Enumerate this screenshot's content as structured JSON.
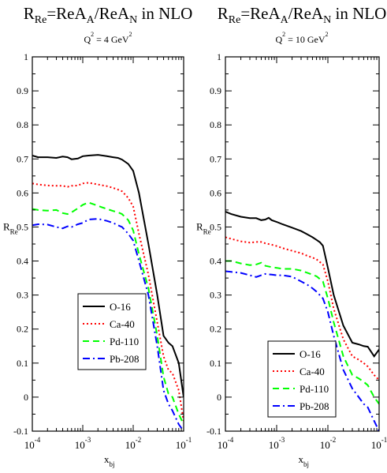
{
  "chart_data": [
    {
      "type": "line",
      "title_parts": {
        "r": "R",
        "rsub": "Re",
        "eq": "=ReA",
        "asub": "A",
        "slash": "/ReA",
        "nsub": "N",
        "tail": " in NLO"
      },
      "subtitle_parts": {
        "q": "Q",
        "qsup": "2",
        "eq": " = 4 GeV",
        "gsup": "2"
      },
      "ylabel_parts": {
        "main": "R",
        "sub": "Re"
      },
      "xlabel_parts": {
        "main": "x",
        "sub": "bj"
      },
      "xscale": "log",
      "xlim": [
        0.0001,
        0.1
      ],
      "ylim": [
        -0.1,
        1.0
      ],
      "yticks": [
        -0.1,
        0,
        0.1,
        0.2,
        0.3,
        0.4,
        0.5,
        0.6,
        0.7,
        0.8,
        0.9,
        1.0
      ],
      "ytick_labels": [
        "-0.1",
        "0",
        "0.1",
        "0.2",
        "0.3",
        "0.4",
        "0.5",
        "0.6",
        "0.7",
        "0.8",
        "0.9",
        "1"
      ],
      "xticks": [
        0.0001,
        0.001,
        0.01,
        0.1
      ],
      "xtick_labels": [
        [
          "10",
          "-4"
        ],
        [
          "10",
          "-3"
        ],
        [
          "10",
          "-2"
        ],
        [
          "10",
          "-1"
        ]
      ],
      "legend_position": "lower-left",
      "series": [
        {
          "name": "O-16",
          "color": "#000000",
          "dash": "solid",
          "points": [
            [
              0.0001,
              0.71
            ],
            [
              0.00013,
              0.705
            ],
            [
              0.0002,
              0.705
            ],
            [
              0.0003,
              0.703
            ],
            [
              0.0004,
              0.707
            ],
            [
              0.0005,
              0.705
            ],
            [
              0.0006,
              0.699
            ],
            [
              0.0008,
              0.701
            ],
            [
              0.001,
              0.708
            ],
            [
              0.0013,
              0.71
            ],
            [
              0.002,
              0.712
            ],
            [
              0.003,
              0.708
            ],
            [
              0.004,
              0.705
            ],
            [
              0.005,
              0.703
            ],
            [
              0.006,
              0.698
            ],
            [
              0.008,
              0.685
            ],
            [
              0.01,
              0.665
            ],
            [
              0.013,
              0.6
            ],
            [
              0.02,
              0.45
            ],
            [
              0.03,
              0.3
            ],
            [
              0.04,
              0.18
            ],
            [
              0.05,
              0.16
            ],
            [
              0.06,
              0.15
            ],
            [
              0.08,
              0.1
            ],
            [
              0.1,
              0.0
            ]
          ]
        },
        {
          "name": "Ca-40",
          "color": "#ff0000",
          "dash": "dot",
          "points": [
            [
              0.0001,
              0.628
            ],
            [
              0.00013,
              0.625
            ],
            [
              0.0002,
              0.622
            ],
            [
              0.0003,
              0.621
            ],
            [
              0.0004,
              0.621
            ],
            [
              0.0005,
              0.618
            ],
            [
              0.0006,
              0.621
            ],
            [
              0.0008,
              0.622
            ],
            [
              0.001,
              0.628
            ],
            [
              0.0013,
              0.63
            ],
            [
              0.002,
              0.625
            ],
            [
              0.003,
              0.62
            ],
            [
              0.004,
              0.615
            ],
            [
              0.005,
              0.61
            ],
            [
              0.006,
              0.605
            ],
            [
              0.008,
              0.585
            ],
            [
              0.01,
              0.56
            ],
            [
              0.013,
              0.48
            ],
            [
              0.02,
              0.36
            ],
            [
              0.03,
              0.22
            ],
            [
              0.04,
              0.12
            ],
            [
              0.05,
              0.08
            ],
            [
              0.06,
              0.07
            ],
            [
              0.08,
              0.02
            ],
            [
              0.1,
              -0.07
            ]
          ]
        },
        {
          "name": "Pd-110",
          "color": "#00ff00",
          "dash": "dash",
          "points": [
            [
              0.0001,
              0.553
            ],
            [
              0.00013,
              0.55
            ],
            [
              0.0002,
              0.548
            ],
            [
              0.0003,
              0.55
            ],
            [
              0.0004,
              0.541
            ],
            [
              0.0005,
              0.538
            ],
            [
              0.0006,
              0.543
            ],
            [
              0.0008,
              0.555
            ],
            [
              0.001,
              0.565
            ],
            [
              0.0013,
              0.572
            ],
            [
              0.002,
              0.562
            ],
            [
              0.003,
              0.553
            ],
            [
              0.004,
              0.547
            ],
            [
              0.005,
              0.543
            ],
            [
              0.006,
              0.538
            ],
            [
              0.008,
              0.52
            ],
            [
              0.01,
              0.49
            ],
            [
              0.013,
              0.42
            ],
            [
              0.02,
              0.32
            ],
            [
              0.03,
              0.18
            ],
            [
              0.04,
              0.06
            ],
            [
              0.05,
              0.01
            ],
            [
              0.06,
              0.0
            ],
            [
              0.08,
              -0.05
            ],
            [
              0.1,
              -0.08
            ]
          ]
        },
        {
          "name": "Pb-208",
          "color": "#0000ff",
          "dash": "dashdot",
          "points": [
            [
              0.0001,
              0.505
            ],
            [
              0.00013,
              0.508
            ],
            [
              0.0002,
              0.507
            ],
            [
              0.0003,
              0.5
            ],
            [
              0.0004,
              0.496
            ],
            [
              0.0005,
              0.502
            ],
            [
              0.0006,
              0.5
            ],
            [
              0.0008,
              0.508
            ],
            [
              0.001,
              0.512
            ],
            [
              0.0013,
              0.522
            ],
            [
              0.002,
              0.524
            ],
            [
              0.003,
              0.518
            ],
            [
              0.004,
              0.512
            ],
            [
              0.005,
              0.505
            ],
            [
              0.006,
              0.5
            ],
            [
              0.008,
              0.48
            ],
            [
              0.01,
              0.46
            ],
            [
              0.013,
              0.4
            ],
            [
              0.02,
              0.3
            ],
            [
              0.03,
              0.15
            ],
            [
              0.04,
              0.02
            ],
            [
              0.05,
              -0.02
            ],
            [
              0.06,
              -0.04
            ],
            [
              0.08,
              -0.08
            ],
            [
              0.1,
              -0.1
            ]
          ]
        }
      ]
    },
    {
      "type": "line",
      "title_parts": {
        "r": "R",
        "rsub": "Re",
        "eq": "=ReA",
        "asub": "A",
        "slash": "/ReA",
        "nsub": "N",
        "tail": " in NLO"
      },
      "subtitle_parts": {
        "q": "Q",
        "qsup": "2",
        "eq": " = 10 GeV",
        "gsup": "2"
      },
      "ylabel_parts": {
        "main": "R",
        "sub": "Re"
      },
      "xlabel_parts": {
        "main": "x",
        "sub": "bj"
      },
      "xscale": "log",
      "xlim": [
        0.0001,
        0.1
      ],
      "ylim": [
        -0.1,
        1.0
      ],
      "yticks": [
        -0.1,
        0,
        0.1,
        0.2,
        0.3,
        0.4,
        0.5,
        0.6,
        0.7,
        0.8,
        0.9,
        1.0
      ],
      "ytick_labels": [
        "-0.1",
        "0",
        "0.1",
        "0.2",
        "0.3",
        "0.4",
        "0.5",
        "0.6",
        "0.7",
        "0.8",
        "0.9",
        "1"
      ],
      "xticks": [
        0.0001,
        0.001,
        0.01,
        0.1
      ],
      "xtick_labels": [
        [
          "10",
          "-4"
        ],
        [
          "10",
          "-3"
        ],
        [
          "10",
          "-2"
        ],
        [
          "10",
          "-1"
        ]
      ],
      "legend_position": "lower-left",
      "series": [
        {
          "name": "O-16",
          "color": "#000000",
          "dash": "solid",
          "points": [
            [
              0.0001,
              0.545
            ],
            [
              0.00013,
              0.538
            ],
            [
              0.0002,
              0.53
            ],
            [
              0.0003,
              0.526
            ],
            [
              0.0004,
              0.526
            ],
            [
              0.0005,
              0.52
            ],
            [
              0.0006,
              0.522
            ],
            [
              0.0007,
              0.527
            ],
            [
              0.0008,
              0.52
            ],
            [
              0.001,
              0.515
            ],
            [
              0.0013,
              0.508
            ],
            [
              0.002,
              0.498
            ],
            [
              0.003,
              0.488
            ],
            [
              0.004,
              0.478
            ],
            [
              0.005,
              0.47
            ],
            [
              0.006,
              0.462
            ],
            [
              0.007,
              0.455
            ],
            [
              0.008,
              0.445
            ],
            [
              0.01,
              0.38
            ],
            [
              0.013,
              0.3
            ],
            [
              0.02,
              0.21
            ],
            [
              0.03,
              0.16
            ],
            [
              0.04,
              0.155
            ],
            [
              0.05,
              0.15
            ],
            [
              0.06,
              0.148
            ],
            [
              0.08,
              0.12
            ],
            [
              0.1,
              0.14
            ]
          ]
        },
        {
          "name": "Ca-40",
          "color": "#ff0000",
          "dash": "dot",
          "points": [
            [
              0.0001,
              0.47
            ],
            [
              0.00013,
              0.465
            ],
            [
              0.0002,
              0.458
            ],
            [
              0.0003,
              0.454
            ],
            [
              0.0004,
              0.456
            ],
            [
              0.0005,
              0.456
            ],
            [
              0.0006,
              0.452
            ],
            [
              0.0008,
              0.448
            ],
            [
              0.001,
              0.444
            ],
            [
              0.0013,
              0.438
            ],
            [
              0.002,
              0.43
            ],
            [
              0.003,
              0.423
            ],
            [
              0.004,
              0.415
            ],
            [
              0.005,
              0.41
            ],
            [
              0.006,
              0.405
            ],
            [
              0.008,
              0.39
            ],
            [
              0.01,
              0.34
            ],
            [
              0.013,
              0.26
            ],
            [
              0.02,
              0.17
            ],
            [
              0.03,
              0.12
            ],
            [
              0.04,
              0.11
            ],
            [
              0.05,
              0.1
            ],
            [
              0.06,
              0.09
            ],
            [
              0.08,
              0.065
            ],
            [
              0.1,
              0.05
            ]
          ]
        },
        {
          "name": "Pd-110",
          "color": "#00ff00",
          "dash": "dash",
          "points": [
            [
              0.0001,
              0.4
            ],
            [
              0.00013,
              0.4
            ],
            [
              0.0002,
              0.393
            ],
            [
              0.0003,
              0.388
            ],
            [
              0.0004,
              0.39
            ],
            [
              0.0005,
              0.395
            ],
            [
              0.0006,
              0.386
            ],
            [
              0.0008,
              0.382
            ],
            [
              0.001,
              0.38
            ],
            [
              0.0013,
              0.377
            ],
            [
              0.002,
              0.377
            ],
            [
              0.003,
              0.372
            ],
            [
              0.004,
              0.365
            ],
            [
              0.005,
              0.36
            ],
            [
              0.006,
              0.355
            ],
            [
              0.008,
              0.34
            ],
            [
              0.01,
              0.29
            ],
            [
              0.013,
              0.22
            ],
            [
              0.02,
              0.12
            ],
            [
              0.03,
              0.065
            ],
            [
              0.04,
              0.055
            ],
            [
              0.05,
              0.045
            ],
            [
              0.06,
              0.035
            ],
            [
              0.08,
              0.0
            ],
            [
              0.1,
              -0.02
            ]
          ]
        },
        {
          "name": "Pb-208",
          "color": "#0000ff",
          "dash": "dashdot",
          "points": [
            [
              0.0001,
              0.37
            ],
            [
              0.00013,
              0.368
            ],
            [
              0.0002,
              0.365
            ],
            [
              0.0003,
              0.358
            ],
            [
              0.0004,
              0.353
            ],
            [
              0.0005,
              0.358
            ],
            [
              0.0006,
              0.362
            ],
            [
              0.0008,
              0.36
            ],
            [
              0.001,
              0.358
            ],
            [
              0.0013,
              0.358
            ],
            [
              0.002,
              0.354
            ],
            [
              0.003,
              0.34
            ],
            [
              0.004,
              0.33
            ],
            [
              0.005,
              0.32
            ],
            [
              0.006,
              0.31
            ],
            [
              0.008,
              0.29
            ],
            [
              0.01,
              0.25
            ],
            [
              0.013,
              0.18
            ],
            [
              0.02,
              0.08
            ],
            [
              0.03,
              0.025
            ],
            [
              0.04,
              0.0
            ],
            [
              0.05,
              -0.02
            ],
            [
              0.06,
              -0.03
            ],
            [
              0.08,
              -0.07
            ],
            [
              0.1,
              -0.1
            ]
          ]
        }
      ]
    }
  ]
}
